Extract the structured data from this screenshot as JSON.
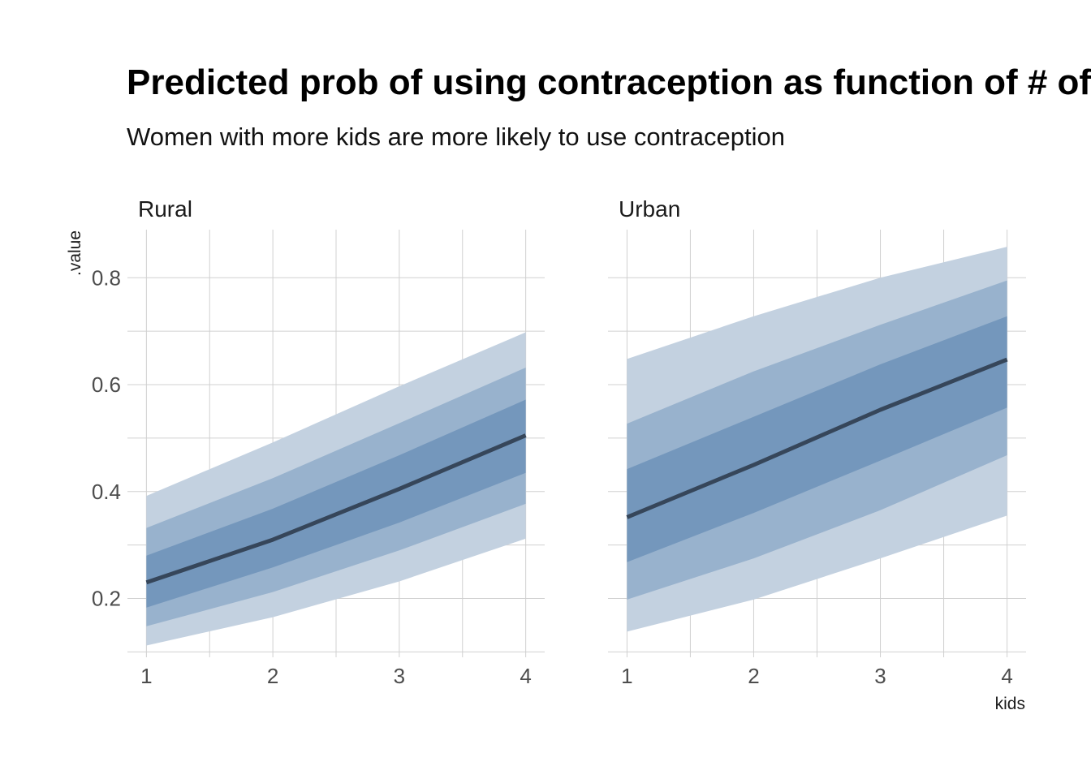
{
  "chart_data": {
    "type": "line",
    "title": "Predicted prob of using contraception as function of # of kids",
    "subtitle": "Women with more kids are more likely to use contraception",
    "xlabel": "kids",
    "ylabel": ".value",
    "x": [
      1,
      2,
      3,
      4
    ],
    "xticks": [
      "1",
      "2",
      "3",
      "4"
    ],
    "yticks": [
      "0.2",
      "0.4",
      "0.6",
      "0.8"
    ],
    "ylim": [
      0.09,
      0.89
    ],
    "xlim": [
      0.85,
      4.15
    ],
    "grid": true,
    "band_levels": [
      0.95,
      0.8,
      0.5
    ],
    "colors": {
      "band_outer": "#c3d1e0",
      "band_mid": "#98b2cd",
      "band_inner": "#7497bc",
      "line": "#36465a",
      "grid": "#d0d0d0"
    },
    "panels": [
      {
        "label": "Rural",
        "median": [
          0.23,
          0.31,
          0.405,
          0.505
        ],
        "bands": [
          {
            "level": 0.95,
            "lower": [
              0.112,
              0.165,
              0.232,
              0.312
            ],
            "upper": [
              0.392,
              0.492,
              0.597,
              0.698
            ]
          },
          {
            "level": 0.8,
            "lower": [
              0.148,
              0.212,
              0.29,
              0.377
            ],
            "upper": [
              0.332,
              0.425,
              0.528,
              0.632
            ]
          },
          {
            "level": 0.5,
            "lower": [
              0.183,
              0.258,
              0.342,
              0.435
            ],
            "upper": [
              0.28,
              0.368,
              0.468,
              0.572
            ]
          }
        ]
      },
      {
        "label": "Urban",
        "median": [
          0.352,
          0.45,
          0.553,
          0.647
        ],
        "bands": [
          {
            "level": 0.95,
            "lower": [
              0.138,
              0.198,
              0.275,
              0.355
            ],
            "upper": [
              0.648,
              0.728,
              0.8,
              0.858
            ]
          },
          {
            "level": 0.8,
            "lower": [
              0.198,
              0.275,
              0.365,
              0.468
            ],
            "upper": [
              0.527,
              0.625,
              0.712,
              0.795
            ]
          },
          {
            "level": 0.5,
            "lower": [
              0.268,
              0.36,
              0.458,
              0.557
            ],
            "upper": [
              0.442,
              0.54,
              0.638,
              0.728
            ]
          }
        ]
      }
    ]
  }
}
